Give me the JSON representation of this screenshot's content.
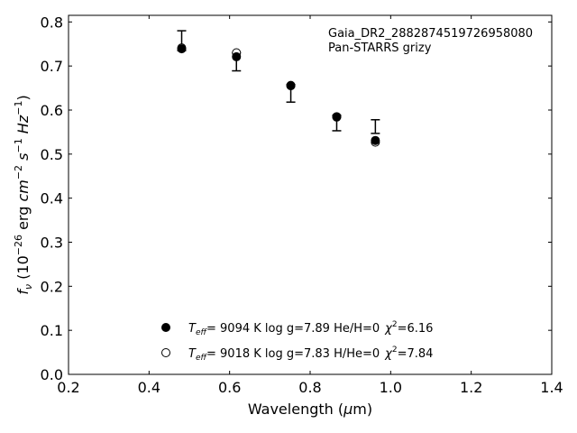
{
  "chart_data": {
    "type": "scatter",
    "xlabel": "Wavelength (μm)",
    "ylabel": "fν (10⁻²⁶ erg cm⁻² s⁻¹ Hz⁻¹)",
    "xlim": [
      0.2,
      1.4
    ],
    "ylim": [
      0.0,
      0.815
    ],
    "x_ticks": [
      "0.2",
      "0.4",
      "0.6",
      "0.8",
      "1.0",
      "1.2",
      "1.4"
    ],
    "y_ticks": [
      "0.0",
      "0.1",
      "0.2",
      "0.3",
      "0.4",
      "0.5",
      "0.6",
      "0.7",
      "0.8"
    ],
    "grid": false,
    "annotations": [
      "Gaia_DR2_2882874519726958080",
      "Pan-STARRS grizy"
    ],
    "observed": {
      "x": [
        0.481,
        0.617,
        0.752,
        0.866,
        0.962
      ],
      "y_low": [
        0.735,
        0.689,
        0.618,
        0.553,
        0.547
      ],
      "y_high": [
        0.78,
        0.73,
        0.658,
        0.588,
        0.578
      ]
    },
    "series": [
      {
        "marker": "filled",
        "x": [
          0.481,
          0.617,
          0.752,
          0.866,
          0.962
        ],
        "y": [
          0.739,
          0.721,
          0.655,
          0.584,
          0.531
        ]
      },
      {
        "marker": "open",
        "x": [
          0.481,
          0.617,
          0.752,
          0.866,
          0.962
        ],
        "y": [
          0.741,
          0.73,
          0.656,
          0.585,
          0.527
        ]
      }
    ],
    "legend": [
      {
        "marker": "filled",
        "teff_label": "T",
        "teff_sub": "eff",
        "text": "=  9094 K  log g=7.89  He/H=0",
        "chi_label": "χ",
        "chi_sup": "2",
        "chi_value": "=6.16"
      },
      {
        "marker": "open",
        "teff_label": "T",
        "teff_sub": "eff",
        "text": "=  9018 K  log g=7.83  H/He=0",
        "chi_label": "χ",
        "chi_sup": "2",
        "chi_value": "=7.84"
      }
    ]
  }
}
